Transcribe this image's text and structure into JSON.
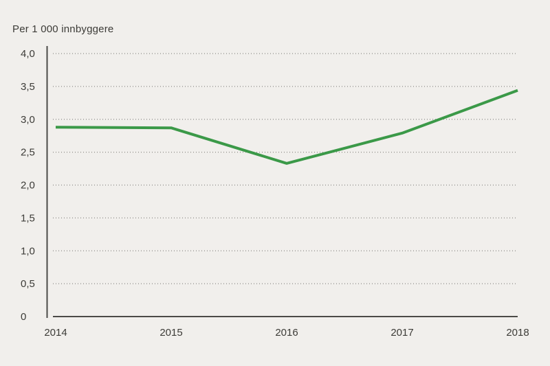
{
  "figure": {
    "background_color": "#f1efec",
    "text_color": "#3c3b37",
    "axis_color": "#4b4a47",
    "grid_color": "#8b8a86"
  },
  "chart_data": {
    "type": "line",
    "title": "Per 1 000 innbyggere",
    "ylabel": "Per 1 000 innbyggere",
    "xlabel": "",
    "categories": [
      "2014",
      "2015",
      "2016",
      "2017",
      "2018"
    ],
    "series": [
      {
        "name": "Per 1 000 innbyggere",
        "color": "#3b9948",
        "values": [
          2.88,
          2.87,
          2.33,
          2.79,
          3.44
        ]
      }
    ],
    "ylim": [
      0,
      4
    ],
    "yticks": [
      {
        "value": 0,
        "label": "0"
      },
      {
        "value": 0.5,
        "label": "0,5"
      },
      {
        "value": 1,
        "label": "1,0"
      },
      {
        "value": 1.5,
        "label": "1,5"
      },
      {
        "value": 2,
        "label": "2,0"
      },
      {
        "value": 2.5,
        "label": "2,5"
      },
      {
        "value": 3,
        "label": "3,0"
      },
      {
        "value": 3.5,
        "label": "3,5"
      },
      {
        "value": 4,
        "label": "4,0"
      }
    ],
    "grid": "horizontal-dotted",
    "legend": "none"
  }
}
